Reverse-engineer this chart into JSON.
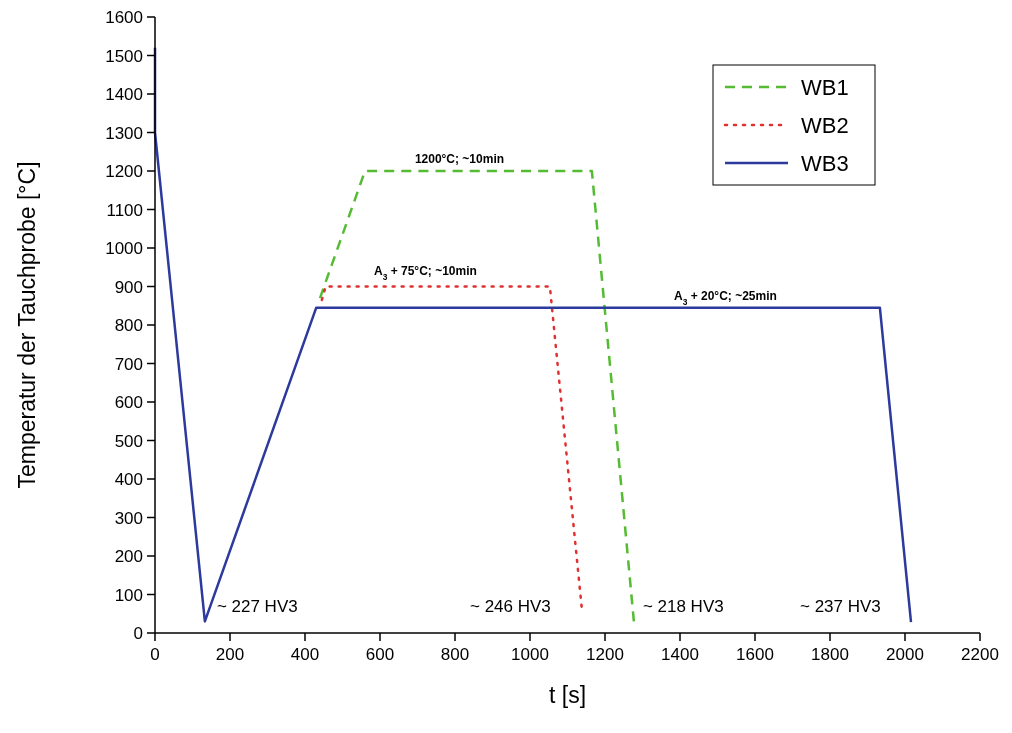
{
  "chart_data": {
    "type": "line",
    "xlabel": "t [s]",
    "ylabel": "Temperatur der Tauchprobe [°C]",
    "xlim": [
      0,
      2200
    ],
    "xticks": [
      0,
      200,
      400,
      600,
      800,
      1000,
      1200,
      1400,
      1600,
      1800,
      2000,
      2200
    ],
    "ylim": [
      0,
      1600
    ],
    "yticks": [
      0,
      100,
      200,
      300,
      400,
      500,
      600,
      700,
      800,
      900,
      1000,
      1100,
      1200,
      1300,
      1400,
      1500,
      1600
    ],
    "grid": false,
    "legend": "top right",
    "series": [
      {
        "name": "WB1",
        "color": "#55bb33",
        "line_style": "dashed",
        "x": [
          440,
          560,
          1165,
          1277
        ],
        "values": [
          870,
          1200,
          1200,
          30
        ]
      },
      {
        "name": "WB2",
        "color": "#e03030",
        "line_style": "dotted",
        "x": [
          445,
          455,
          1053,
          1139
        ],
        "values": [
          865,
          900,
          900,
          55
        ]
      },
      {
        "name": "WB3",
        "color": "#2b3a9c",
        "line_style": "solid",
        "x": [
          0,
          0,
          133,
          430,
          1933,
          2016
        ],
        "values": [
          1520,
          1300,
          30,
          845,
          845,
          28
        ]
      }
    ],
    "annotations": [
      "~ 227 HV3",
      "~ 246 HV3",
      "~ 218 HV3",
      "~ 237 HV3",
      "1200°C; ~10min",
      "A$_{3}$ + 75°C; ~10min",
      "A$_{3}$ + 20°C; ~25min"
    ]
  }
}
